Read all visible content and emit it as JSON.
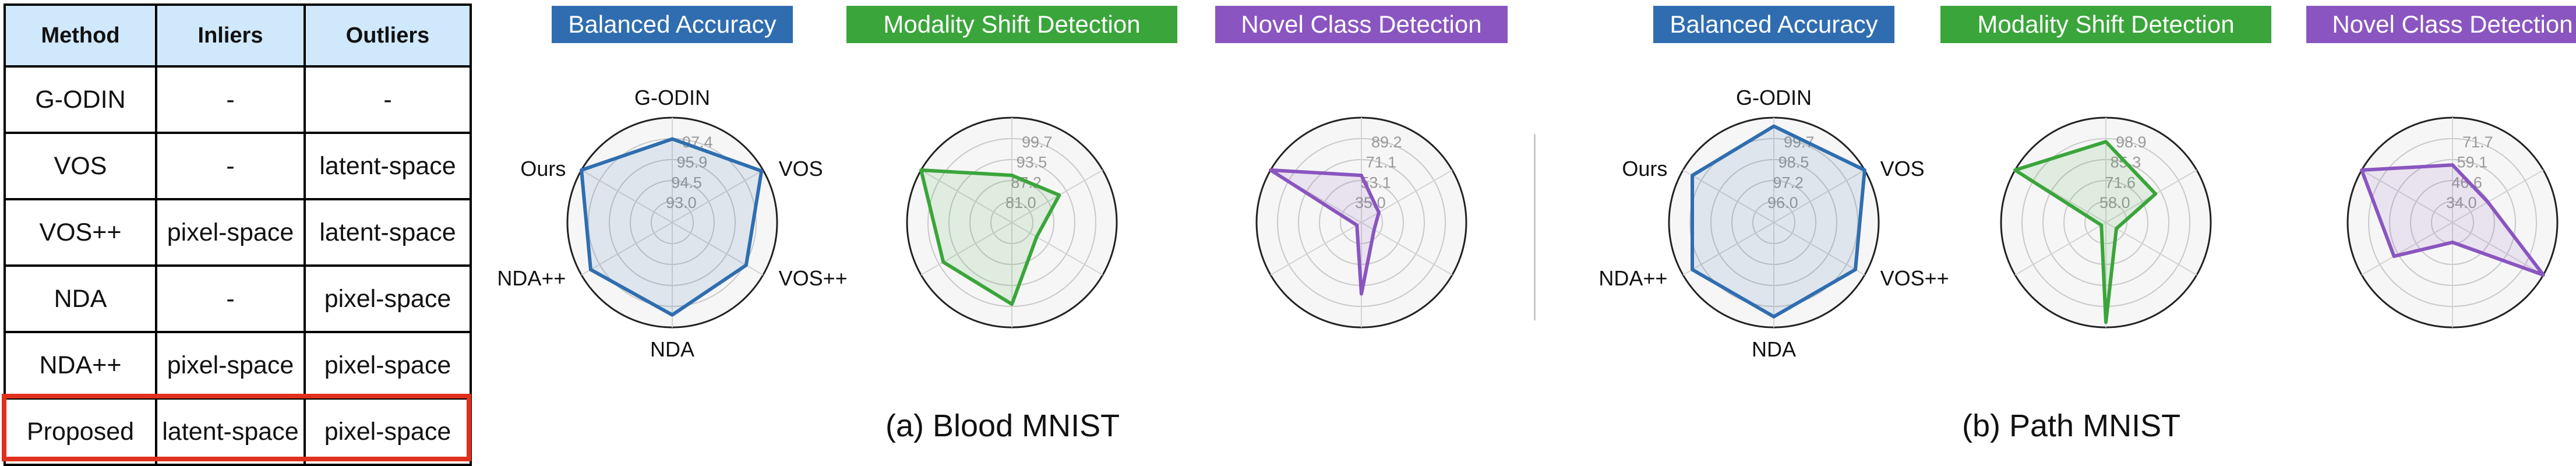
{
  "table": {
    "headers": [
      "Method",
      "Inliers",
      "Outliers"
    ],
    "rows": [
      [
        "G-ODIN",
        "-",
        "-"
      ],
      [
        "VOS",
        "-",
        "latent-space"
      ],
      [
        "VOS++",
        "pixel-space",
        "latent-space"
      ],
      [
        "NDA",
        "-",
        "pixel-space"
      ],
      [
        "NDA++",
        "pixel-space",
        "pixel-space"
      ],
      [
        "Proposed",
        "latent-space",
        "pixel-space"
      ]
    ]
  },
  "captions": {
    "a": "(a) Blood MNIST",
    "b": "(b) Path MNIST"
  },
  "chart_data": [
    {
      "type": "radar",
      "panel": "a",
      "title": "Balanced Accuracy",
      "color": "#2f6db0",
      "axes": [
        "G-ODIN",
        "VOS",
        "VOS++",
        "NDA",
        "NDA++",
        "Ours"
      ],
      "ticks": [
        "93.0",
        "94.5",
        "95.9",
        "97.4"
      ],
      "range": [
        91.5,
        97.4
      ],
      "values": [
        96.2,
        97.3,
        96.3,
        96.7,
        96.8,
        97.4
      ]
    },
    {
      "type": "radar",
      "panel": "a",
      "title": "Modality Shift Detection",
      "color": "#3aa53a",
      "axes": [
        "G-ODIN",
        "VOS",
        "VOS++",
        "NDA",
        "NDA++",
        "Ours"
      ],
      "ticks": [
        "81.0",
        "87.2",
        "93.5",
        "99.7"
      ],
      "range": [
        74.8,
        99.7
      ],
      "values": [
        86.0,
        87.8,
        81.6,
        94.2,
        93.6,
        99.7
      ]
    },
    {
      "type": "radar",
      "panel": "a",
      "title": "Novel Class Detection",
      "color": "#8a55c0",
      "axes": [
        "G-ODIN",
        "VOS",
        "VOS++",
        "NDA",
        "NDA++",
        "Ours"
      ],
      "ticks": [
        "35.0",
        "53.1",
        "71.1",
        "89.2"
      ],
      "range": [
        16.9,
        89.2
      ],
      "values": [
        49.4,
        30.8,
        27.0,
        66.1,
        16.9,
        89.2
      ]
    },
    {
      "type": "radar",
      "panel": "b",
      "title": "Balanced Accuracy",
      "color": "#2f6db0",
      "axes": [
        "G-ODIN",
        "VOS",
        "VOS++",
        "NDA",
        "NDA++",
        "Ours"
      ],
      "ticks": [
        "96.0",
        "97.2",
        "98.5",
        "99.7"
      ],
      "range": [
        94.8,
        99.7
      ],
      "values": [
        99.3,
        99.7,
        99.2,
        99.2,
        99.2,
        99.2
      ]
    },
    {
      "type": "radar",
      "panel": "b",
      "title": "Modality Shift Detection",
      "color": "#3aa53a",
      "axes": [
        "G-ODIN",
        "VOS",
        "VOS++",
        "NDA",
        "NDA++",
        "Ours"
      ],
      "ticks": [
        "58.0",
        "71.6",
        "85.3",
        "98.9"
      ],
      "range": [
        44.4,
        98.9
      ],
      "values": [
        86.4,
        74.2,
        50.7,
        96.2,
        44.4,
        98.9
      ]
    },
    {
      "type": "radar",
      "panel": "b",
      "title": "Novel Class Detection",
      "color": "#8a55c0",
      "axes": [
        "G-ODIN",
        "VOS",
        "VOS++",
        "NDA",
        "NDA++",
        "Ours"
      ],
      "ticks": [
        "34.0",
        "46.6",
        "59.1",
        "71.7"
      ],
      "range": [
        21.4,
        71.7
      ],
      "values": [
        49.0,
        41.0,
        71.7,
        30.9,
        53.8,
        71.7
      ]
    }
  ]
}
